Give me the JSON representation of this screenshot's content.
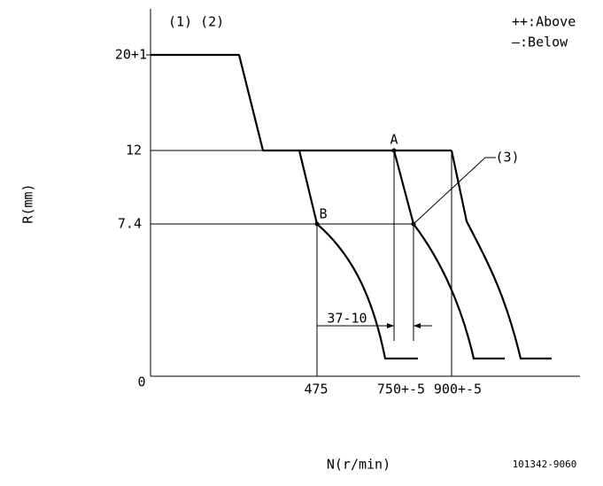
{
  "header": {
    "notes": "(1) (2)",
    "legend_above": "++:Above",
    "legend_below": "—:Below"
  },
  "axes": {
    "y_label": "R(mm)",
    "x_label": "N(r/min)",
    "y_ticks": [
      "20+1",
      "12",
      "7.4",
      "0"
    ],
    "x_ticks": [
      "475",
      "750+-5",
      "900+-5"
    ]
  },
  "points": {
    "a": "A",
    "b": "B",
    "callout": "(3)"
  },
  "dimension": "37-10",
  "part_number": "101342-9060"
}
